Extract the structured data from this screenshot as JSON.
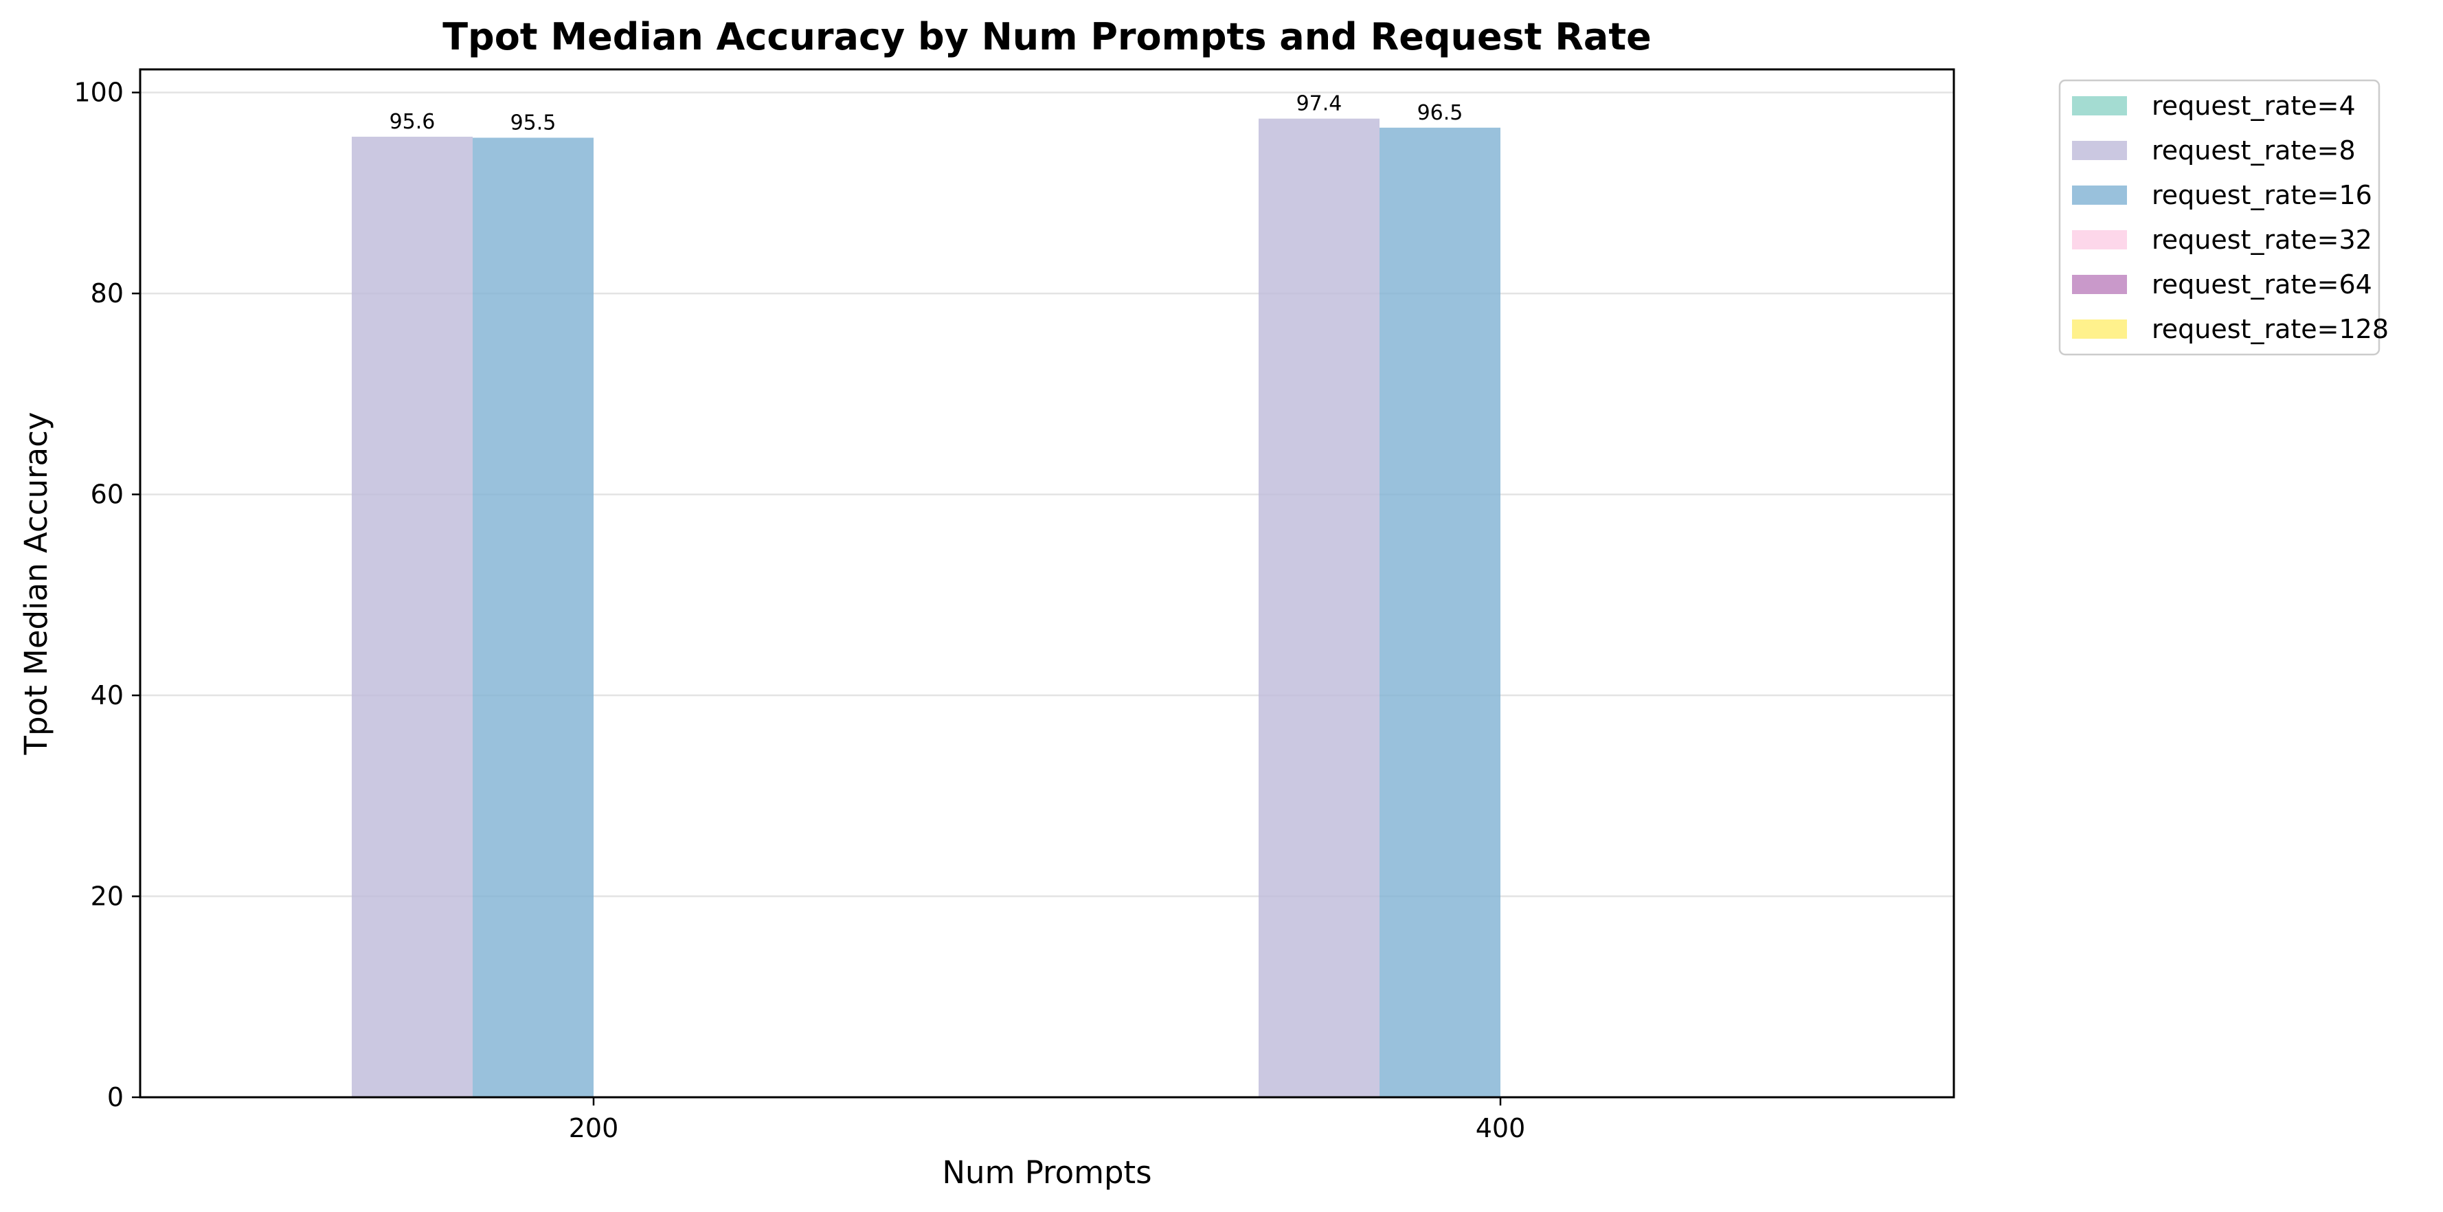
{
  "chart_data": {
    "type": "bar",
    "title": "Tpot Median Accuracy by Num Prompts and Request Rate",
    "xlabel": "Num Prompts",
    "ylabel": "Tpot Median Accuracy",
    "categories": [
      "200",
      "400"
    ],
    "ylim": [
      0,
      102.3
    ],
    "yticks": [
      0,
      20,
      40,
      60,
      80,
      100
    ],
    "grid": true,
    "legend_position": "outside-top-right",
    "series": [
      {
        "name": "request_rate=4",
        "color": "#8dd3c7",
        "values": [
          null,
          null
        ]
      },
      {
        "name": "request_rate=8",
        "color": "#bebada",
        "values": [
          95.6,
          97.4
        ]
      },
      {
        "name": "request_rate=16",
        "color": "#80b1d3",
        "values": [
          95.5,
          96.5
        ]
      },
      {
        "name": "request_rate=32",
        "color": "#fccde5",
        "values": [
          null,
          null
        ]
      },
      {
        "name": "request_rate=64",
        "color": "#bc80bd",
        "values": [
          null,
          null
        ]
      },
      {
        "name": "request_rate=128",
        "color": "#ffed6f",
        "values": [
          null,
          null
        ]
      }
    ]
  }
}
